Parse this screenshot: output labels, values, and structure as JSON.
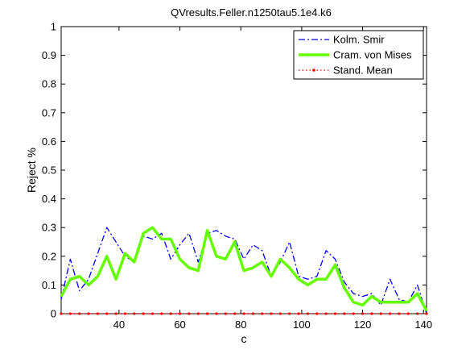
{
  "chart_data": {
    "type": "line",
    "title": "QVresults.Feller.n1250tau5.1e4.k6",
    "xlabel": "c",
    "ylabel": "Reject %",
    "xlim": [
      21,
      141
    ],
    "ylim": [
      0,
      1
    ],
    "xticks": [
      40,
      60,
      80,
      100,
      120,
      140
    ],
    "yticks": [
      0,
      0.1,
      0.2,
      0.3,
      0.4,
      0.5,
      0.6,
      0.7,
      0.8,
      0.9,
      1
    ],
    "grid": false,
    "legend_position": "top-right",
    "x": [
      21,
      24,
      27,
      30,
      33,
      36,
      39,
      42,
      45,
      48,
      51,
      54,
      57,
      60,
      63,
      66,
      69,
      72,
      75,
      78,
      81,
      84,
      87,
      90,
      93,
      96,
      99,
      102,
      105,
      108,
      111,
      114,
      117,
      120,
      123,
      126,
      129,
      132,
      135,
      138,
      141
    ],
    "series": [
      {
        "name": "Kolm. Smir",
        "color": "#0000ff",
        "style": "dash-dot",
        "values": [
          0.05,
          0.19,
          0.08,
          0.12,
          0.21,
          0.3,
          0.25,
          0.2,
          0.18,
          0.27,
          0.26,
          0.28,
          0.19,
          0.24,
          0.28,
          0.18,
          0.28,
          0.29,
          0.27,
          0.26,
          0.19,
          0.24,
          0.22,
          0.13,
          0.18,
          0.25,
          0.13,
          0.12,
          0.13,
          0.22,
          0.19,
          0.11,
          0.07,
          0.06,
          0.07,
          0.03,
          0.12,
          0.05,
          0.04,
          0.1,
          0.0
        ]
      },
      {
        "name": "Cram. von Mises",
        "color": "#66ff00",
        "style": "solid",
        "values": [
          0.06,
          0.12,
          0.13,
          0.1,
          0.13,
          0.2,
          0.12,
          0.21,
          0.18,
          0.28,
          0.3,
          0.26,
          0.26,
          0.19,
          0.16,
          0.15,
          0.29,
          0.2,
          0.19,
          0.25,
          0.15,
          0.16,
          0.18,
          0.13,
          0.19,
          0.16,
          0.12,
          0.1,
          0.12,
          0.12,
          0.17,
          0.09,
          0.04,
          0.03,
          0.06,
          0.04,
          0.04,
          0.04,
          0.04,
          0.07,
          0.01
        ]
      },
      {
        "name": "Stand. Mean",
        "color": "#ff0000",
        "style": "dotted",
        "values": [
          0,
          0,
          0,
          0,
          0,
          0,
          0,
          0,
          0,
          0,
          0,
          0,
          0,
          0,
          0,
          0,
          0,
          0,
          0,
          0,
          0,
          0,
          0,
          0,
          0,
          0,
          0,
          0,
          0,
          0,
          0,
          0,
          0,
          0,
          0,
          0,
          0,
          0,
          0,
          0,
          0
        ]
      }
    ]
  }
}
